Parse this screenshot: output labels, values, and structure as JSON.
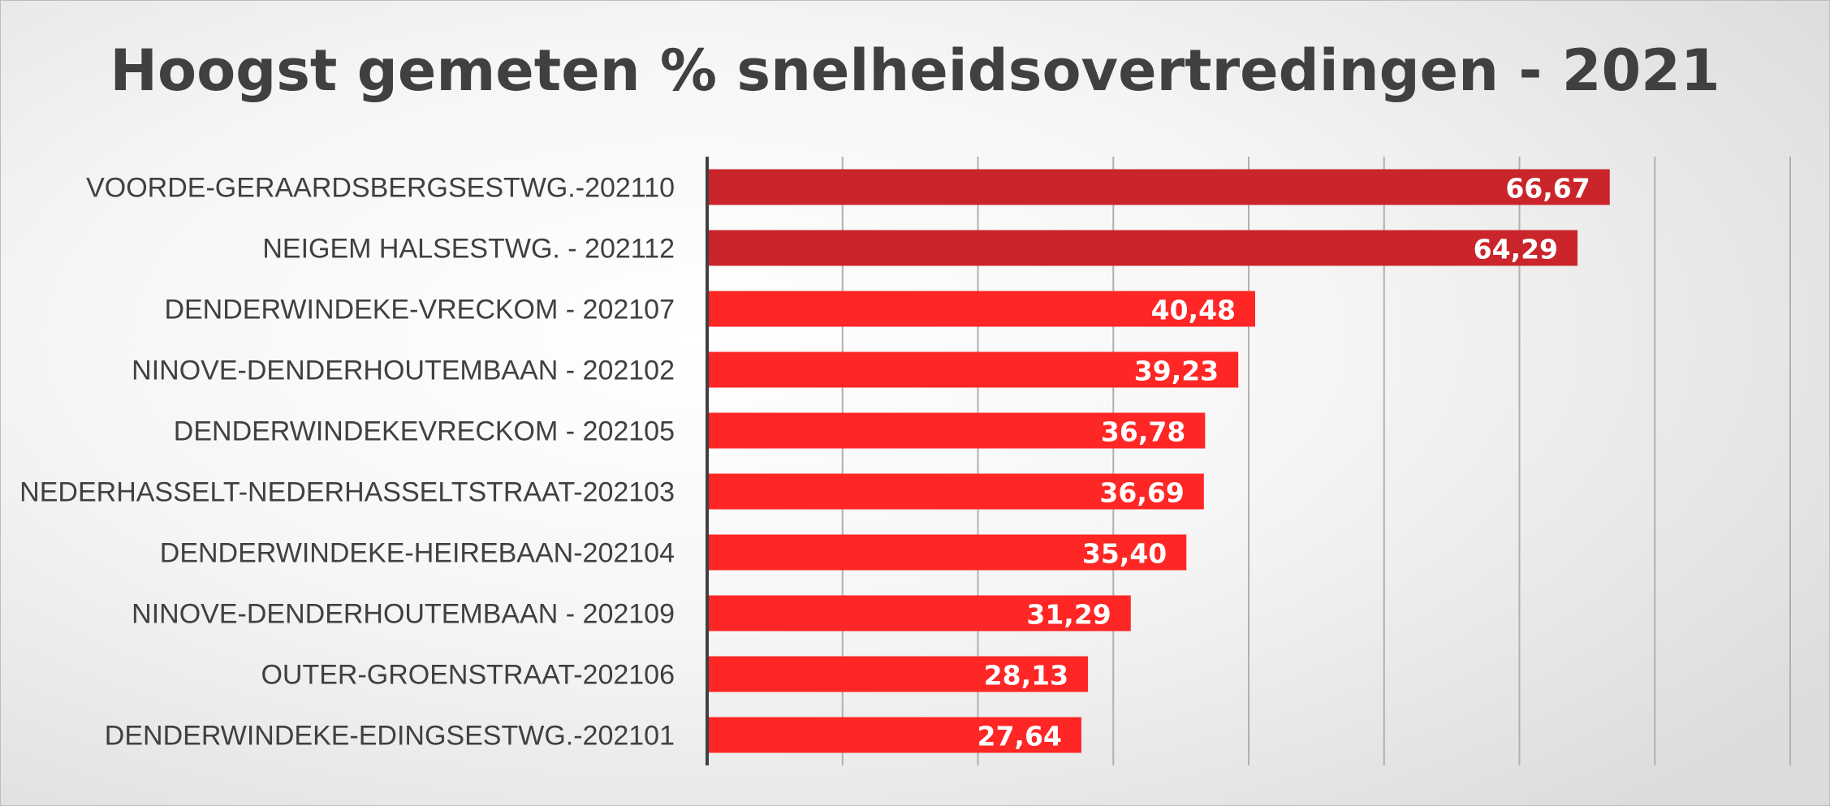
{
  "chart_data": {
    "type": "bar",
    "orientation": "horizontal",
    "title": "Hoogst gemeten % snelheidsovertredingen - 2021",
    "xlabel": "",
    "ylabel": "",
    "xlim": [
      0,
      80
    ],
    "grid": true,
    "legend": "none",
    "categories": [
      "VOORDE-GERAARDSBERGSESTWG.-202110",
      "NEIGEM HALSESTWG. - 202112",
      "DENDERWINDEKE-VRECKOM  - 202107",
      "NINOVE-DENDERHOUTEMBAAN  - 202102",
      "DENDERWINDEKEVRECKOM  - 202105",
      "NEDERHASSELT-NEDERHASSELTSTRAAT-202103",
      "DENDERWINDEKE-HEIREBAAN-202104",
      "NINOVE-DENDERHOUTEMBAAN  - 202109",
      "OUTER-GROENSTRAAT-202106",
      "DENDERWINDEKE-EDINGSESTWG.-202101"
    ],
    "values": [
      66.67,
      64.29,
      40.48,
      39.23,
      36.78,
      36.69,
      35.4,
      31.29,
      28.13,
      27.64
    ],
    "data_labels": [
      "66,67",
      "64,29",
      "40,48",
      "39,23",
      "36,78",
      "36,69",
      "35,40",
      "31,29",
      "28,13",
      "27,64"
    ],
    "colors": {
      "top_bars": "#c9252a",
      "bars": "#ff2626",
      "gridline": "#b0b0b0",
      "axis": "#404040",
      "text": "#404040",
      "data_label": "#ffffff"
    },
    "highlighted_count": 2
  }
}
